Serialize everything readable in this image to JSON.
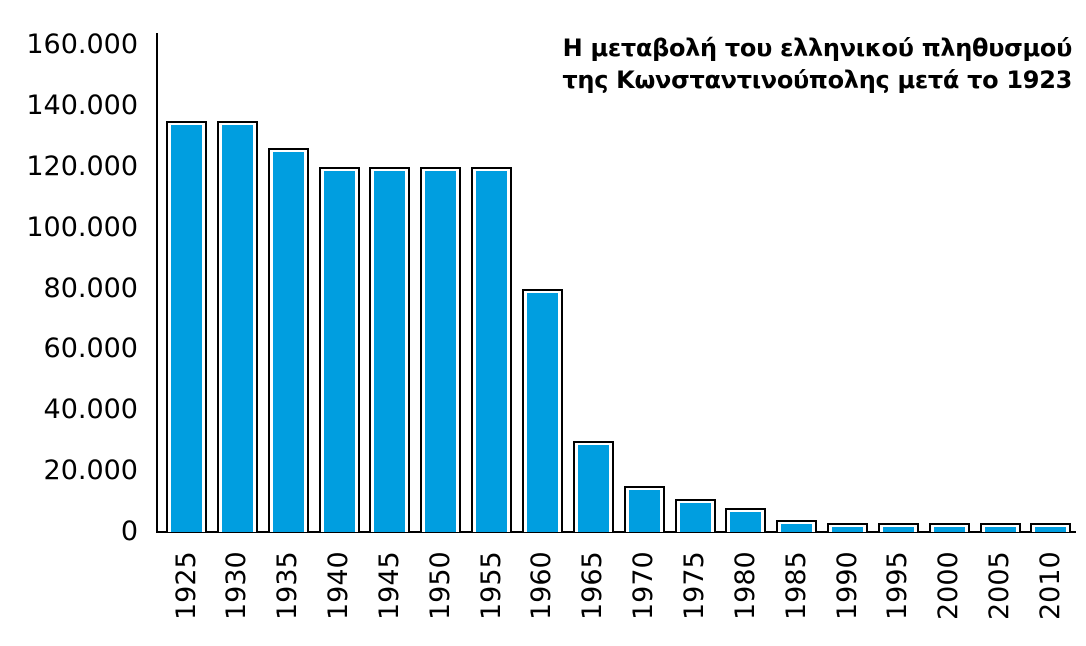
{
  "chart_data": {
    "type": "bar",
    "title": "Η μεταβολή του ελληνικού πληθυσμού της Κωνσταντινούπολης μετά το 1923",
    "title_lines": [
      "Η μεταβολή του ελληνικού πληθυσμού",
      "της Κωνσταντινούπολης μετά το 1923"
    ],
    "xlabel": "",
    "ylabel": "",
    "categories": [
      "1925",
      "1930",
      "1935",
      "1940",
      "1945",
      "1950",
      "1955",
      "1960",
      "1965",
      "1970",
      "1975",
      "1980",
      "1985",
      "1990",
      "1995",
      "2000",
      "2005",
      "2010"
    ],
    "values": [
      135000,
      135000,
      126000,
      120000,
      120000,
      120000,
      120000,
      80000,
      30000,
      15000,
      11000,
      8000,
      4000,
      3000,
      3000,
      3000,
      3000,
      3000
    ],
    "ylim": [
      0,
      160000
    ],
    "yticks": [
      0,
      20000,
      40000,
      60000,
      80000,
      100000,
      120000,
      140000,
      160000
    ],
    "ytick_labels": [
      "0",
      "20.000",
      "40.000",
      "60.000",
      "80.000",
      "100.000",
      "120.000",
      "140.000",
      "160.000"
    ],
    "grid": false,
    "legend": null,
    "colors": {
      "bar_fill": "#009ee0",
      "bar_outline": "#000000",
      "background": "#ffffff"
    }
  }
}
